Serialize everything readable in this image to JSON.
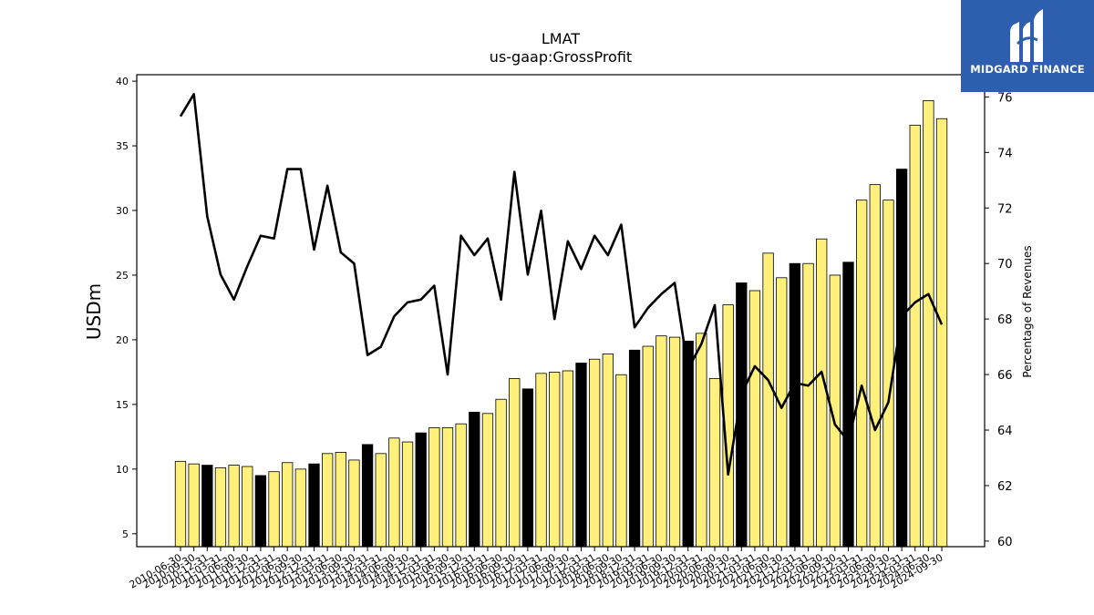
{
  "logo": {
    "text": "MIDGARD FINANCE",
    "background": "#2d5fae"
  },
  "chart_data": {
    "type": "bar",
    "title": "LMAT",
    "subtitle": "us-gaap:GrossProfit",
    "ylabel": "USDm",
    "ylabel_right": "Percentage of Revenues",
    "ylim": [
      4,
      40.5
    ],
    "ylim_right": [
      59.8,
      76.8
    ],
    "yticks": [
      5,
      10,
      15,
      20,
      25,
      30,
      35,
      40
    ],
    "yticks_right": [
      60,
      62,
      64,
      66,
      68,
      70,
      72,
      74,
      76
    ],
    "categories": [
      "2010-06-30",
      "2010-09-30",
      "2010-12-31",
      "2011-03-31",
      "2011-06-30",
      "2011-09-30",
      "2011-12-31",
      "2012-03-31",
      "2012-06-30",
      "2012-09-30",
      "2012-12-31",
      "2013-03-31",
      "2013-06-30",
      "2013-09-30",
      "2013-12-31",
      "2014-03-31",
      "2014-06-30",
      "2014-09-30",
      "2014-12-31",
      "2015-03-31",
      "2015-06-30",
      "2015-09-30",
      "2015-12-31",
      "2016-03-31",
      "2016-06-30",
      "2016-09-30",
      "2016-12-31",
      "2017-03-31",
      "2017-06-30",
      "2017-09-30",
      "2017-12-31",
      "2018-03-31",
      "2018-06-30",
      "2018-09-30",
      "2018-12-31",
      "2019-03-31",
      "2019-06-30",
      "2019-09-30",
      "2019-12-31",
      "2020-03-31",
      "2020-06-30",
      "2020-09-30",
      "2020-12-31",
      "2021-03-31",
      "2021-06-30",
      "2021-09-30",
      "2021-12-31",
      "2022-03-31",
      "2022-06-30",
      "2022-09-30",
      "2022-12-31",
      "2023-03-31",
      "2023-06-30",
      "2023-09-30",
      "2023-12-31",
      "2024-03-31",
      "2024-06-30",
      "2024-09-30"
    ],
    "series": [
      {
        "type": "bar",
        "values": [
          10.6,
          10.4,
          10.3,
          10.1,
          10.3,
          10.2,
          9.5,
          9.8,
          10.5,
          10.0,
          10.4,
          11.2,
          11.3,
          10.7,
          11.9,
          11.2,
          12.4,
          12.1,
          12.8,
          13.2,
          13.2,
          13.5,
          14.4,
          14.3,
          15.4,
          17.0,
          16.2,
          17.4,
          17.5,
          17.6,
          18.2,
          18.5,
          18.9,
          17.3,
          19.2,
          19.5,
          20.3,
          20.2,
          19.9,
          20.5,
          17.0,
          22.7,
          24.4,
          23.8,
          26.7,
          24.8,
          25.9,
          25.9,
          27.8,
          25.0,
          26.0,
          30.8,
          32.0,
          30.8,
          33.2,
          36.6,
          38.5,
          37.1
        ]
      },
      {
        "type": "line",
        "axis": "right",
        "values": [
          75.3,
          76.1,
          71.7,
          69.6,
          68.7,
          69.9,
          71.0,
          70.9,
          73.4,
          73.4,
          70.5,
          72.8,
          70.4,
          70.0,
          66.7,
          67.0,
          68.1,
          68.6,
          68.7,
          69.2,
          66.0,
          71.0,
          70.3,
          70.9,
          68.7,
          73.3,
          69.6,
          71.9,
          68.0,
          70.8,
          69.8,
          71.0,
          70.3,
          71.4,
          67.7,
          68.4,
          68.9,
          69.3,
          66.2,
          67.1,
          68.5,
          62.4,
          65.3,
          66.3,
          65.8,
          64.8,
          65.7,
          65.6,
          66.1,
          64.2,
          63.6,
          65.6,
          64.0,
          65.0,
          68.1,
          68.6,
          68.9,
          67.8
        ]
      }
    ],
    "bar_fill": "#fff07c",
    "bar_fill_alt": "#000000",
    "line_color": "#000000"
  }
}
